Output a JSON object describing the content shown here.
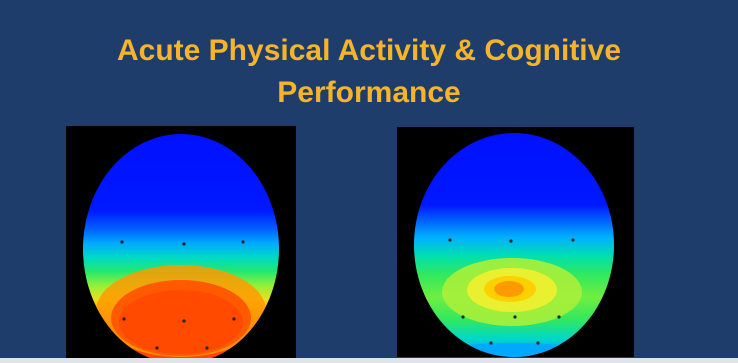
{
  "slide": {
    "title_line1": "Acute Physical Activity & Cognitive",
    "title_line2": "Performance",
    "background_color": "#1f3d6b",
    "title_color": "#f5b42a"
  },
  "brain_maps": [
    {
      "name": "left-topographic-map",
      "colors": [
        "#0014ff",
        "#00aaff",
        "#00e0a0",
        "#2ee84a",
        "#c8f02a",
        "#ffc800",
        "#ff7a00",
        "#ff4a00"
      ]
    },
    {
      "name": "right-topographic-map",
      "colors": [
        "#0014ff",
        "#00a8ff",
        "#00e0a8",
        "#32e650",
        "#b8f03c",
        "#ffe600",
        "#ff9a00"
      ]
    }
  ]
}
